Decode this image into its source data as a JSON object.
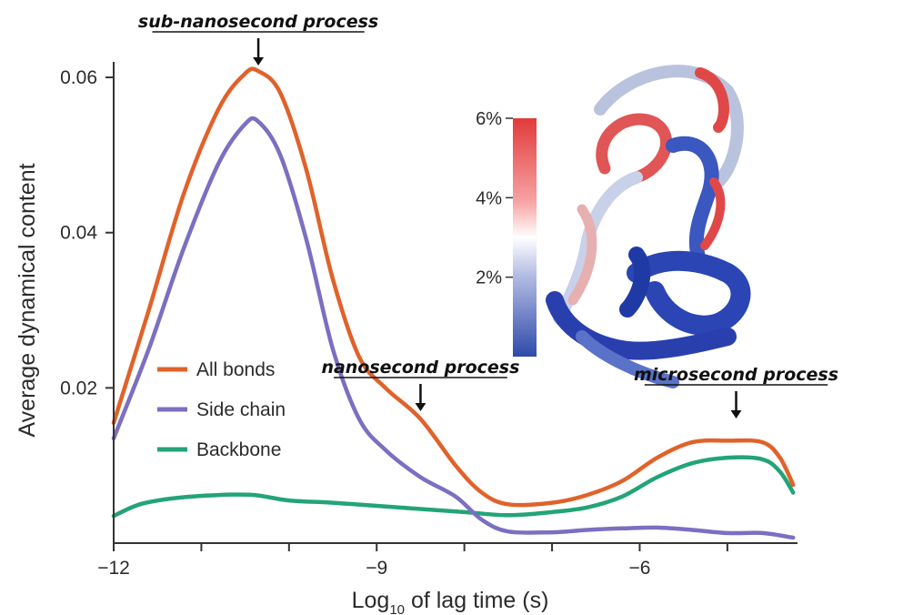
{
  "chart_data": {
    "type": "line",
    "xlabel": "Log10 of lag time (s)",
    "xlabel_base": "Log",
    "xlabel_sub": "10",
    "xlabel_rest": " of lag time (s)",
    "ylabel": "Average dynamical content",
    "xlim": [
      -12,
      -4.2
    ],
    "ylim": [
      0,
      0.062
    ],
    "x_ticks": [
      -12,
      -9,
      -6
    ],
    "x_tick_labels": [
      "−12",
      "−9",
      "−6"
    ],
    "x_minor_ticks": [
      -11,
      -10,
      -8,
      -7,
      -5
    ],
    "y_ticks": [
      0.02,
      0.04,
      0.06
    ],
    "y_tick_labels": [
      "0.02",
      "0.04",
      "0.06"
    ],
    "legend_position": "lower-left",
    "series": [
      {
        "name": "All bonds",
        "color": "#e0622a",
        "points": [
          [
            -12,
            0.0155
          ],
          [
            -11.6,
            0.03
          ],
          [
            -11.2,
            0.045
          ],
          [
            -10.8,
            0.056
          ],
          [
            -10.5,
            0.0605
          ],
          [
            -10.35,
            0.0608
          ],
          [
            -10.1,
            0.058
          ],
          [
            -9.8,
            0.048
          ],
          [
            -9.5,
            0.034
          ],
          [
            -9.2,
            0.024
          ],
          [
            -8.9,
            0.02
          ],
          [
            -8.5,
            0.016
          ],
          [
            -8.1,
            0.01
          ],
          [
            -7.8,
            0.0065
          ],
          [
            -7.5,
            0.005
          ],
          [
            -7.0,
            0.0052
          ],
          [
            -6.6,
            0.0062
          ],
          [
            -6.2,
            0.008
          ],
          [
            -5.8,
            0.011
          ],
          [
            -5.4,
            0.013
          ],
          [
            -5.0,
            0.0132
          ],
          [
            -4.6,
            0.013
          ],
          [
            -4.4,
            0.011
          ],
          [
            -4.25,
            0.0075
          ]
        ]
      },
      {
        "name": "Side chain",
        "color": "#7b6fc2",
        "points": [
          [
            -12,
            0.0135
          ],
          [
            -11.6,
            0.025
          ],
          [
            -11.2,
            0.038
          ],
          [
            -10.8,
            0.049
          ],
          [
            -10.5,
            0.054
          ],
          [
            -10.35,
            0.0543
          ],
          [
            -10.1,
            0.05
          ],
          [
            -9.8,
            0.039
          ],
          [
            -9.5,
            0.025
          ],
          [
            -9.2,
            0.016
          ],
          [
            -8.9,
            0.012
          ],
          [
            -8.5,
            0.0085
          ],
          [
            -8.1,
            0.006
          ],
          [
            -7.8,
            0.003
          ],
          [
            -7.5,
            0.0015
          ],
          [
            -7.0,
            0.0014
          ],
          [
            -6.6,
            0.0017
          ],
          [
            -6.2,
            0.0019
          ],
          [
            -5.8,
            0.002
          ],
          [
            -5.4,
            0.0017
          ],
          [
            -5.0,
            0.0013
          ],
          [
            -4.6,
            0.0013
          ],
          [
            -4.25,
            0.0007
          ]
        ]
      },
      {
        "name": "Backbone",
        "color": "#22a477",
        "points": [
          [
            -12,
            0.0035
          ],
          [
            -11.7,
            0.005
          ],
          [
            -11.3,
            0.0058
          ],
          [
            -10.8,
            0.0062
          ],
          [
            -10.4,
            0.0062
          ],
          [
            -10.0,
            0.0055
          ],
          [
            -9.5,
            0.0052
          ],
          [
            -9.0,
            0.0048
          ],
          [
            -8.5,
            0.0044
          ],
          [
            -8.0,
            0.004
          ],
          [
            -7.5,
            0.0036
          ],
          [
            -7.0,
            0.004
          ],
          [
            -6.6,
            0.0046
          ],
          [
            -6.2,
            0.006
          ],
          [
            -5.8,
            0.0085
          ],
          [
            -5.4,
            0.0103
          ],
          [
            -5.0,
            0.011
          ],
          [
            -4.6,
            0.0108
          ],
          [
            -4.4,
            0.0092
          ],
          [
            -4.25,
            0.0065
          ]
        ]
      }
    ],
    "annotations": [
      {
        "text": "sub-nanosecond process",
        "x": -10.35
      },
      {
        "text": "nanosecond process",
        "x": -8.5
      },
      {
        "text": "microsecond process",
        "x": -4.9
      }
    ],
    "colorbar": {
      "labels": [
        "6%",
        "4%",
        "2%"
      ],
      "values": [
        6,
        4,
        2
      ],
      "min": 0,
      "max": 6,
      "colors": [
        "#e23a3a",
        "#ffffff",
        "#2e4aaa"
      ]
    }
  }
}
